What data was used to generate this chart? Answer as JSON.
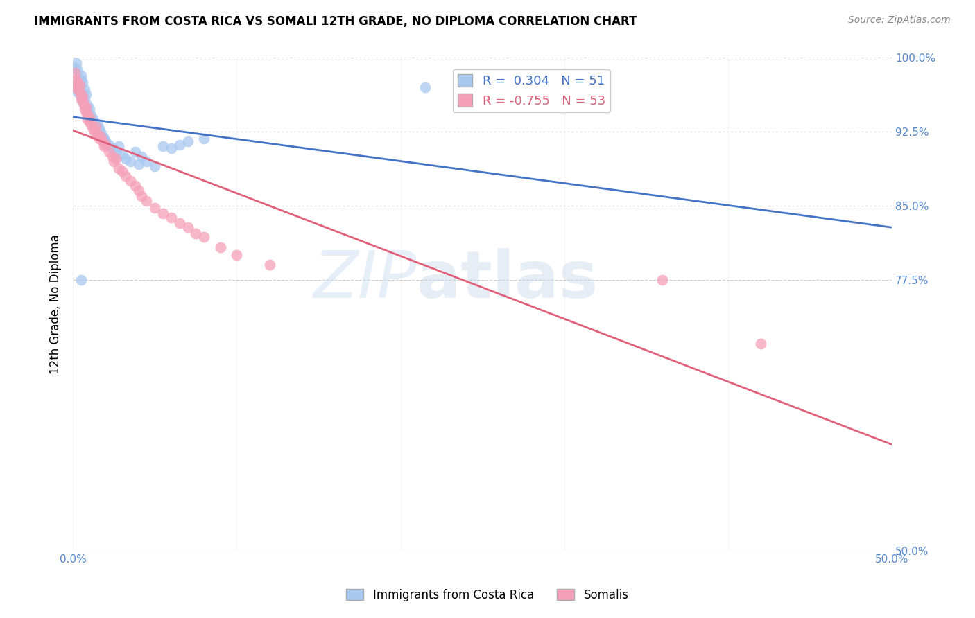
{
  "title": "IMMIGRANTS FROM COSTA RICA VS SOMALI 12TH GRADE, NO DIPLOMA CORRELATION CHART",
  "source": "Source: ZipAtlas.com",
  "ylabel": "12th Grade, No Diploma",
  "xlim": [
    0.0,
    0.5
  ],
  "ylim": [
    0.5,
    1.0
  ],
  "x_tick_positions": [
    0.0,
    0.1,
    0.2,
    0.3,
    0.4,
    0.5
  ],
  "x_tick_labels": [
    "0.0%",
    "",
    "",
    "",
    "",
    "50.0%"
  ],
  "y_tick_positions": [
    0.5,
    0.775,
    0.85,
    0.925,
    1.0
  ],
  "y_tick_labels": [
    "50.0%",
    "77.5%",
    "85.0%",
    "92.5%",
    "100.0%"
  ],
  "costa_rica_R": 0.304,
  "costa_rica_N": 51,
  "somali_R": -0.755,
  "somali_N": 53,
  "costa_rica_color": "#a8c8f0",
  "somali_color": "#f5a0b8",
  "costa_rica_line_color": "#4472c4",
  "somali_line_color": "#e0607a",
  "costa_rica_x": [
    0.001,
    0.002,
    0.002,
    0.003,
    0.003,
    0.003,
    0.004,
    0.004,
    0.005,
    0.005,
    0.005,
    0.006,
    0.006,
    0.006,
    0.007,
    0.007,
    0.008,
    0.008,
    0.009,
    0.009,
    0.01,
    0.01,
    0.011,
    0.012,
    0.013,
    0.014,
    0.015,
    0.016,
    0.017,
    0.018,
    0.019,
    0.02,
    0.022,
    0.024,
    0.026,
    0.028,
    0.03,
    0.032,
    0.035,
    0.038,
    0.04,
    0.042,
    0.045,
    0.05,
    0.055,
    0.06,
    0.065,
    0.07,
    0.08,
    0.005,
    0.215
  ],
  "costa_rica_y": [
    0.99,
    0.97,
    0.995,
    0.975,
    0.965,
    0.988,
    0.972,
    0.968,
    0.978,
    0.96,
    0.982,
    0.955,
    0.962,
    0.975,
    0.958,
    0.968,
    0.95,
    0.963,
    0.945,
    0.952,
    0.948,
    0.94,
    0.942,
    0.938,
    0.935,
    0.93,
    0.932,
    0.928,
    0.925,
    0.92,
    0.918,
    0.915,
    0.912,
    0.908,
    0.905,
    0.91,
    0.902,
    0.898,
    0.895,
    0.905,
    0.892,
    0.9,
    0.895,
    0.89,
    0.91,
    0.908,
    0.912,
    0.915,
    0.918,
    0.775,
    0.97
  ],
  "somali_x": [
    0.001,
    0.002,
    0.002,
    0.003,
    0.003,
    0.004,
    0.004,
    0.005,
    0.005,
    0.006,
    0.006,
    0.007,
    0.007,
    0.008,
    0.008,
    0.009,
    0.009,
    0.01,
    0.01,
    0.011,
    0.012,
    0.013,
    0.014,
    0.015,
    0.016,
    0.017,
    0.018,
    0.019,
    0.02,
    0.022,
    0.024,
    0.025,
    0.026,
    0.028,
    0.03,
    0.032,
    0.035,
    0.038,
    0.04,
    0.042,
    0.045,
    0.05,
    0.055,
    0.06,
    0.065,
    0.07,
    0.075,
    0.08,
    0.09,
    0.1,
    0.12,
    0.36,
    0.42
  ],
  "somali_y": [
    0.985,
    0.978,
    0.97,
    0.968,
    0.975,
    0.965,
    0.972,
    0.962,
    0.958,
    0.955,
    0.96,
    0.952,
    0.948,
    0.945,
    0.95,
    0.942,
    0.938,
    0.94,
    0.935,
    0.932,
    0.928,
    0.925,
    0.93,
    0.922,
    0.918,
    0.92,
    0.915,
    0.91,
    0.912,
    0.905,
    0.9,
    0.895,
    0.898,
    0.888,
    0.885,
    0.88,
    0.875,
    0.87,
    0.865,
    0.86,
    0.855,
    0.848,
    0.842,
    0.838,
    0.832,
    0.828,
    0.822,
    0.818,
    0.808,
    0.8,
    0.79,
    0.775,
    0.71
  ]
}
